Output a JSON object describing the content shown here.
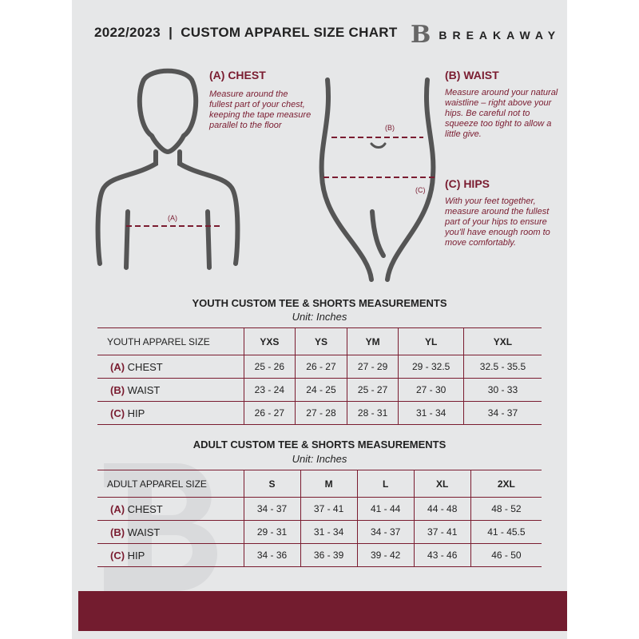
{
  "header": {
    "title": "2022/2023  |  CUSTOM APPAREL SIZE CHART",
    "logo_mark": "B",
    "logo_text": "BREAKAWAY"
  },
  "measures": {
    "chest": {
      "title": "(A) CHEST",
      "desc": "Measure around the fullest part of your chest, keeping the tape measure parallel to the floor",
      "marker": "(A)"
    },
    "waist": {
      "title": "(B) WAIST",
      "desc": "Measure around your natural waistline – right above your hips. Be careful not to squeeze too tight to allow a little give.",
      "marker": "(B)"
    },
    "hips": {
      "title": "(C) HIPS",
      "desc": "With your feet together, measure around the fullest part of your hips to ensure you'll have enough room to move comfortably.",
      "marker": "(C)"
    }
  },
  "colors": {
    "accent": "#7a1c30",
    "background": "#e6e7e8",
    "footer": "#731c2f"
  },
  "youth": {
    "title": "YOUTH CUSTOM TEE & SHORTS MEASUREMENTS",
    "unit": "Unit: Inches",
    "header": [
      "YOUTH APPAREL SIZE",
      "YXS",
      "YS",
      "YM",
      "YL",
      "YXL"
    ],
    "rows": [
      {
        "code": "(A)",
        "name": "CHEST",
        "values": [
          "25 - 26",
          "26 - 27",
          "27 - 29",
          "29 - 32.5",
          "32.5 - 35.5"
        ]
      },
      {
        "code": "(B)",
        "name": "WAIST",
        "values": [
          "23 - 24",
          "24 - 25",
          "25 - 27",
          "27 - 30",
          "30 - 33"
        ]
      },
      {
        "code": "(C)",
        "name": "HIP",
        "values": [
          "26 - 27",
          "27 - 28",
          "28 - 31",
          "31 - 34",
          "34 - 37"
        ]
      }
    ]
  },
  "adult": {
    "title": "ADULT CUSTOM TEE & SHORTS MEASUREMENTS",
    "unit": "Unit: Inches",
    "header": [
      "ADULT APPAREL SIZE",
      "S",
      "M",
      "L",
      "XL",
      "2XL"
    ],
    "rows": [
      {
        "code": "(A)",
        "name": "CHEST",
        "values": [
          "34 - 37",
          "37 - 41",
          "41 - 44",
          "44 - 48",
          "48 - 52"
        ]
      },
      {
        "code": "(B)",
        "name": "WAIST",
        "values": [
          "29 - 31",
          "31 - 34",
          "34 - 37",
          "37 - 41",
          "41 - 45.5"
        ]
      },
      {
        "code": "(C)",
        "name": "HIP",
        "values": [
          "34 - 36",
          "36 - 39",
          "39 - 42",
          "43 - 46",
          "46 - 50"
        ]
      }
    ]
  }
}
